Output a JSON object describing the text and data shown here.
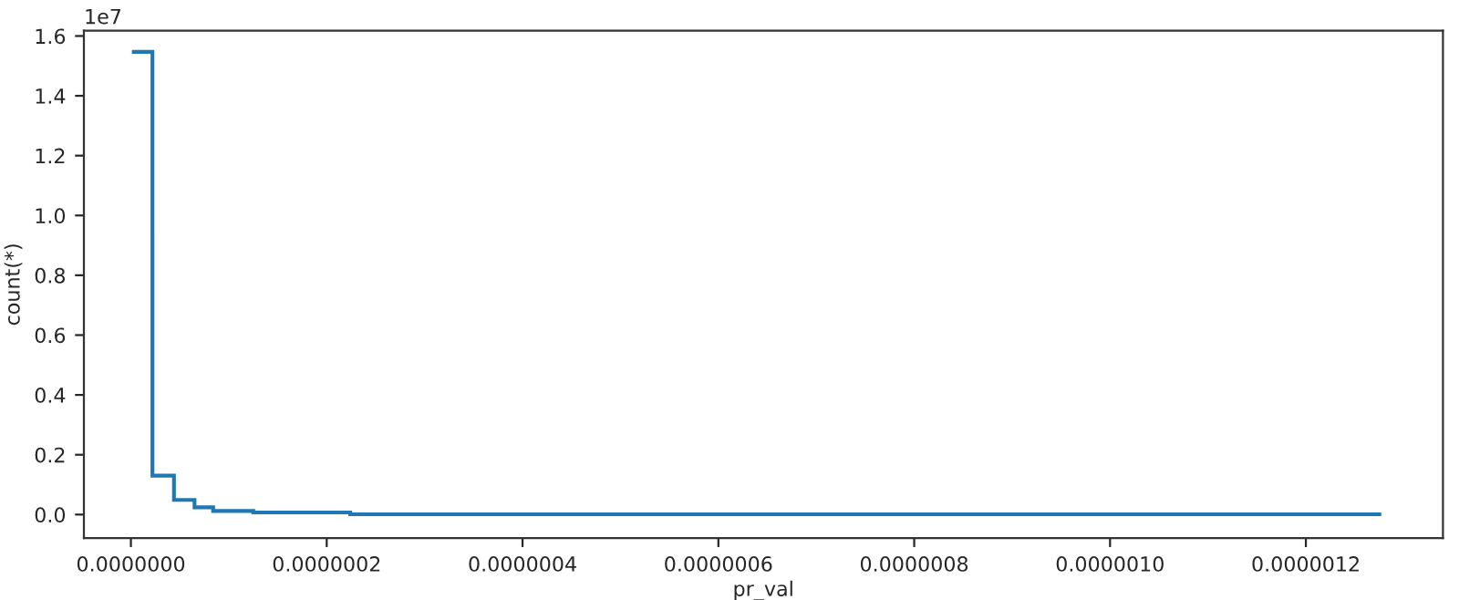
{
  "chart_data": {
    "type": "histogram",
    "xlabel": "pr_val",
    "ylabel": "count(*)",
    "annotations": [
      "1e7"
    ],
    "bins": [
      1e-09,
      2.2e-08,
      4.4e-08,
      6.5e-08,
      8.4e-08,
      1.25e-07,
      2.24e-07,
      1.277e-06
    ],
    "values": [
      1.547,
      0.13,
      0.049,
      0.024,
      0.012,
      0.007,
      0.001
    ],
    "color": "#1f77b4",
    "xlim": [
      -4.8e-08,
      1.34e-06
    ],
    "ylim": [
      -0.079,
      1.618
    ],
    "xticks": [
      {
        "value": 0,
        "label": "0.0000000"
      },
      {
        "value": 2e-07,
        "label": "0.0000002"
      },
      {
        "value": 4e-07,
        "label": "0.0000004"
      },
      {
        "value": 6e-07,
        "label": "0.0000006"
      },
      {
        "value": 8e-07,
        "label": "0.0000008"
      },
      {
        "value": 1e-06,
        "label": "0.0000010"
      },
      {
        "value": 1.2e-06,
        "label": "0.0000012"
      }
    ],
    "yticks": [
      {
        "value": 0,
        "label": "0.0"
      },
      0.2,
      0.4,
      0.6,
      0.8,
      {
        "value": 1,
        "label": "1.0"
      },
      1.2,
      1.4,
      1.6
    ],
    "grid": false
  }
}
